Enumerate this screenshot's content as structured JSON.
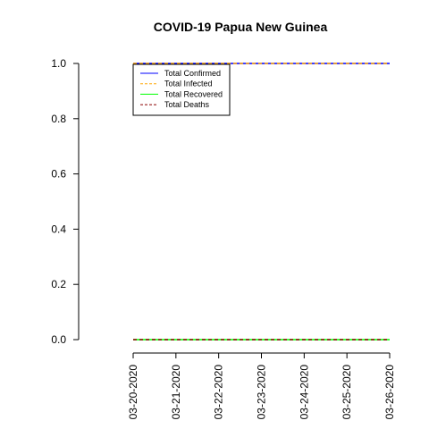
{
  "chart_data": {
    "type": "line",
    "title": "COVID-19 Papua New Guinea",
    "xlabel": "",
    "ylabel": "",
    "x": [
      "03-20-2020",
      "03-21-2020",
      "03-22-2020",
      "03-23-2020",
      "03-24-2020",
      "03-25-2020",
      "03-26-2020"
    ],
    "ylim": [
      0,
      1
    ],
    "yticks": [
      "0.0",
      "0.2",
      "0.4",
      "0.6",
      "0.8",
      "1.0"
    ],
    "grid": false,
    "legend_position": "top-left",
    "series": [
      {
        "name": "Total Confirmed",
        "values": [
          1,
          1,
          1,
          1,
          1,
          1,
          1
        ],
        "color": "#0000ff",
        "style": "solid"
      },
      {
        "name": "Total Infected",
        "values": [
          1,
          1,
          1,
          1,
          1,
          1,
          1
        ],
        "color": "#ffa500",
        "style": "dashed"
      },
      {
        "name": "Total Recovered",
        "values": [
          0,
          0,
          0,
          0,
          0,
          0,
          0
        ],
        "color": "#00ff00",
        "style": "solid"
      },
      {
        "name": "Total Deaths",
        "values": [
          0,
          0,
          0,
          0,
          0,
          0,
          0
        ],
        "color": "#8b0000",
        "style": "dashed"
      }
    ]
  }
}
